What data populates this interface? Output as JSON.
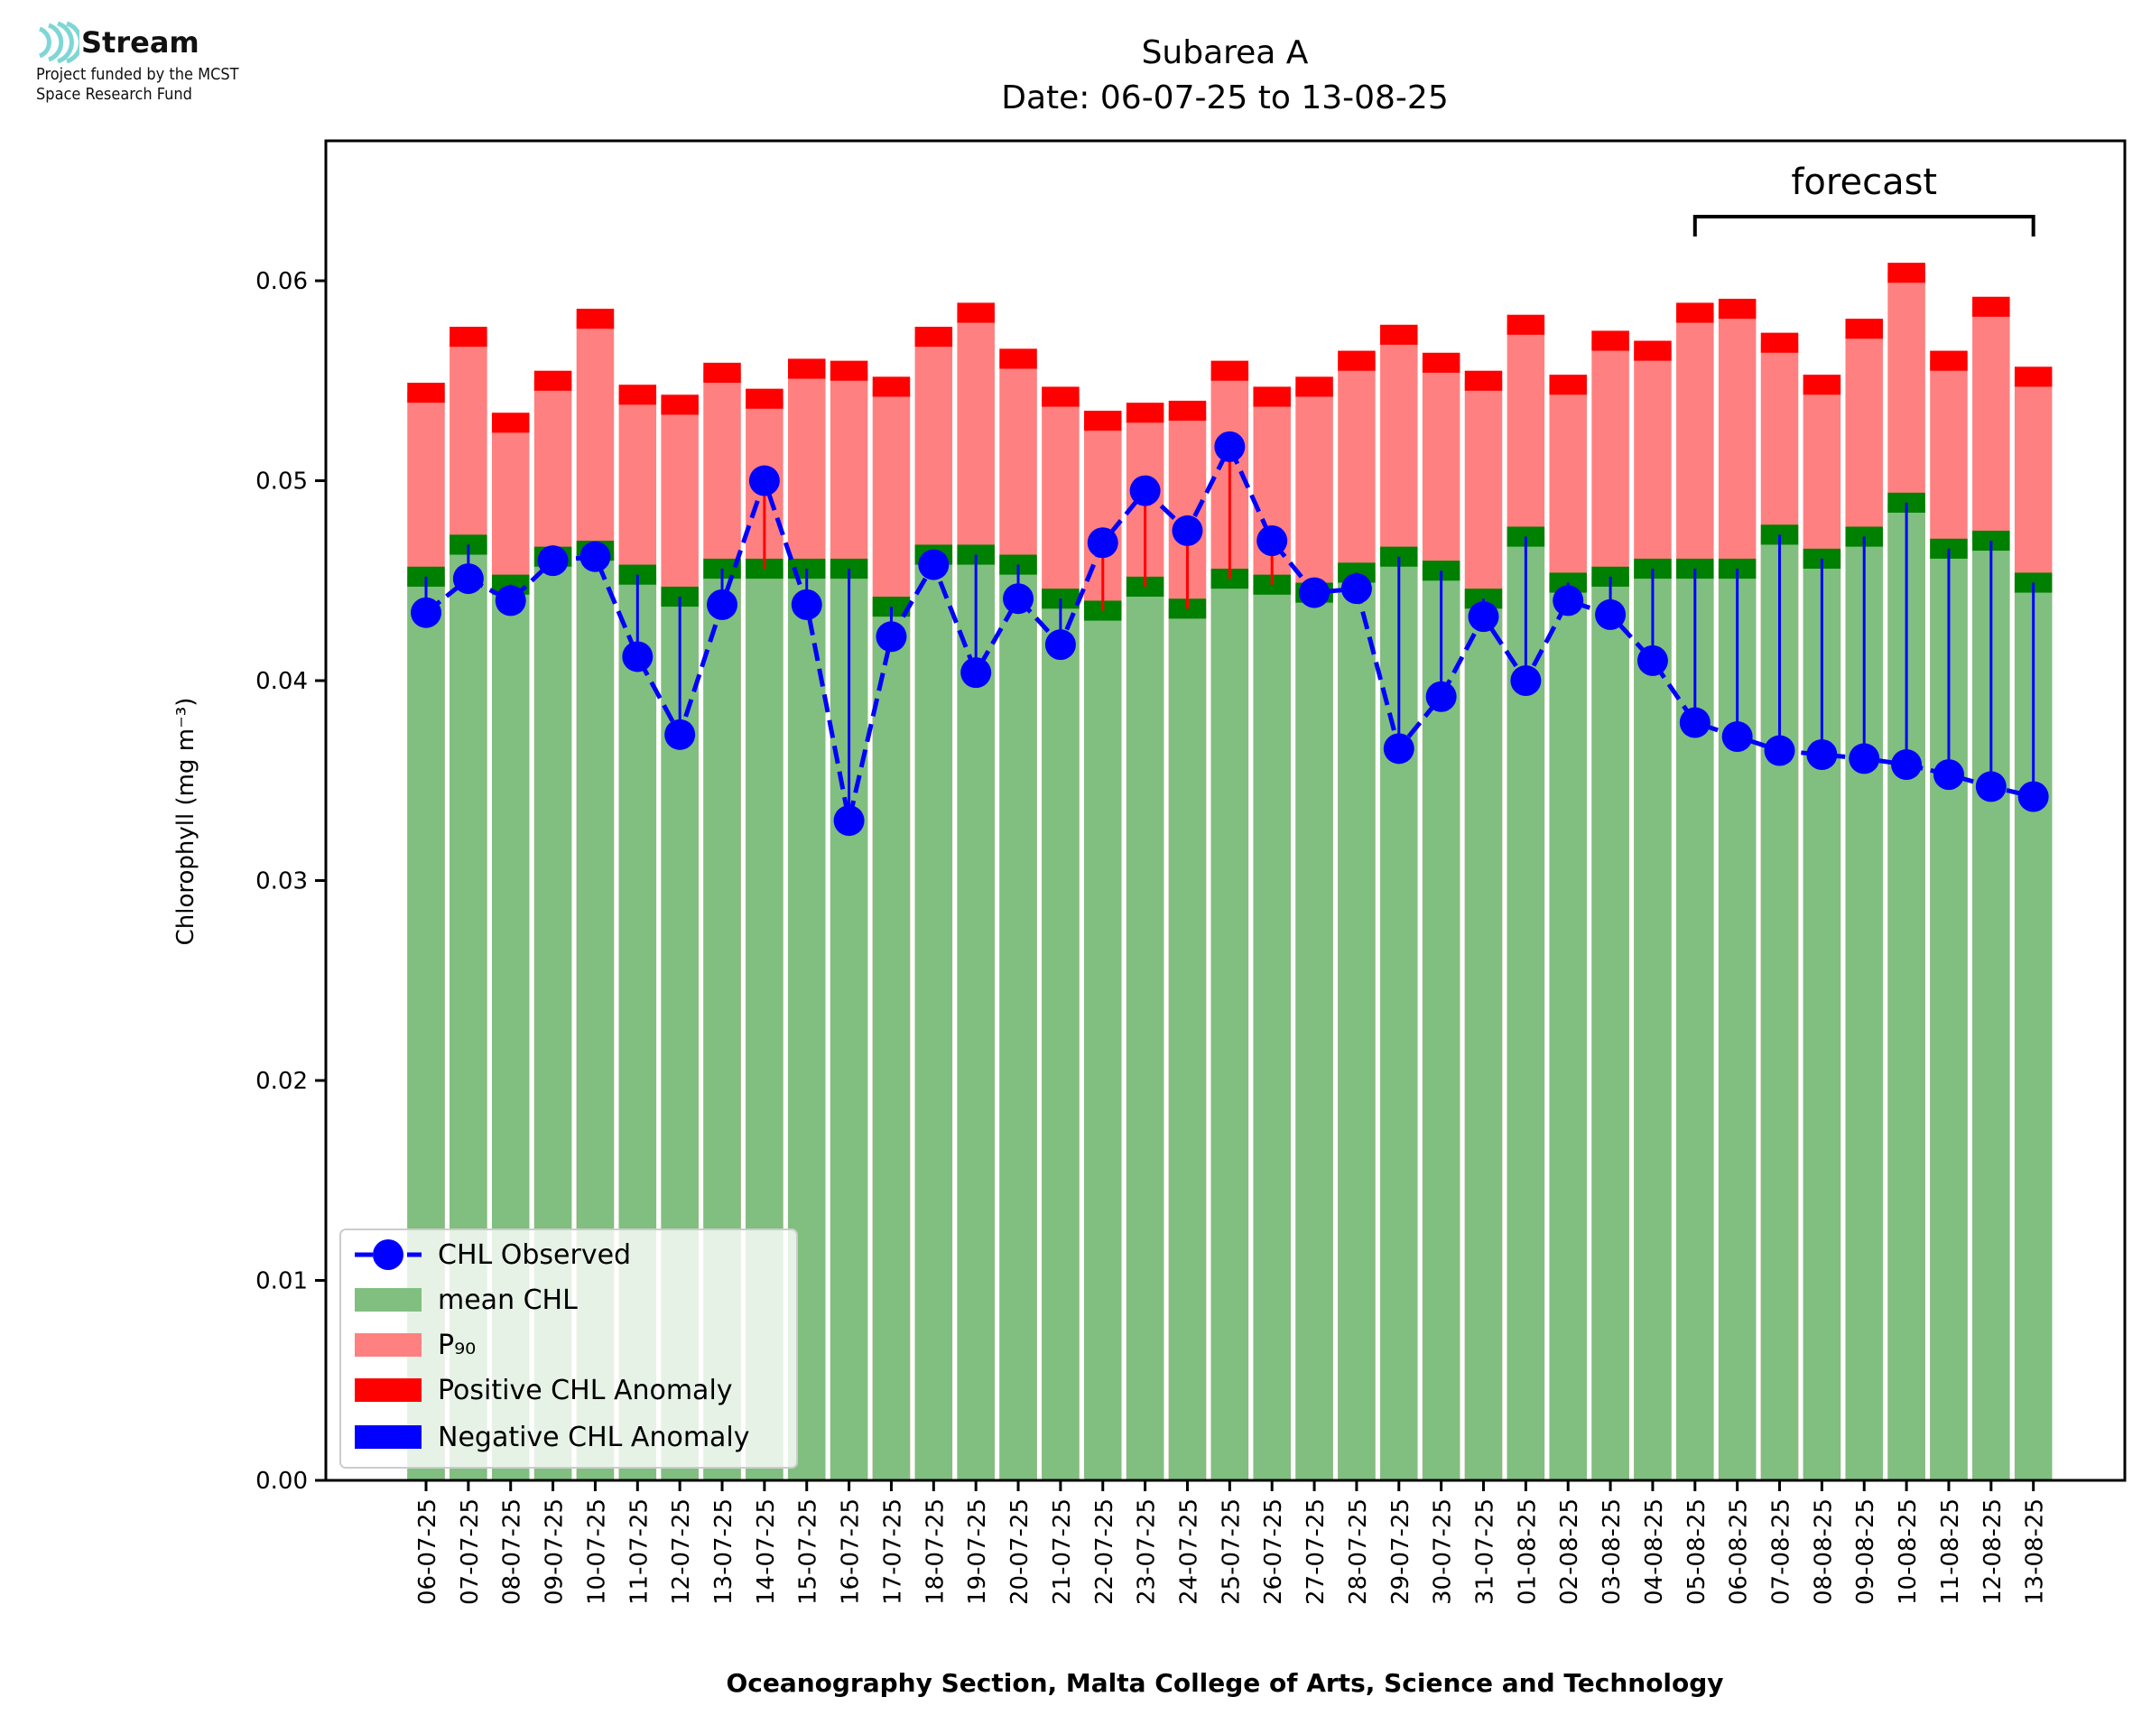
{
  "logo": {
    "name": "Stream",
    "subtitle_line1": "Project funded by the MCST",
    "subtitle_line2": "Space Research Fund"
  },
  "colors": {
    "mean_fill": "#80bf80",
    "mean_band": "#008000",
    "p90_fill": "#ff8080",
    "pos_anomaly": "#ff0000",
    "neg_anomaly": "#0000ff",
    "observed": "#0000ff",
    "logo_accent": "#7fd6d6"
  },
  "chart_data": {
    "type": "bar",
    "title": "Subarea A",
    "subtitle": "Date: 06-07-25 to 13-08-25",
    "xlabel": "Oceanography Section, Malta College of Arts, Science and Technology",
    "ylabel": "Chlorophyll (mg m⁻³)",
    "ylim": [
      0,
      0.067
    ],
    "yticks": [
      "0.00",
      "0.01",
      "0.02",
      "0.03",
      "0.04",
      "0.05",
      "0.06"
    ],
    "grid": false,
    "legend_position": "lower-left",
    "categories": [
      "06-07-25",
      "07-07-25",
      "08-07-25",
      "09-07-25",
      "10-07-25",
      "11-07-25",
      "12-07-25",
      "13-07-25",
      "14-07-25",
      "15-07-25",
      "16-07-25",
      "17-07-25",
      "18-07-25",
      "19-07-25",
      "20-07-25",
      "21-07-25",
      "22-07-25",
      "23-07-25",
      "24-07-25",
      "25-07-25",
      "26-07-25",
      "27-07-25",
      "28-07-25",
      "29-07-25",
      "30-07-25",
      "31-07-25",
      "01-08-25",
      "02-08-25",
      "03-08-25",
      "04-08-25",
      "05-08-25",
      "06-08-25",
      "07-08-25",
      "08-08-25",
      "09-08-25",
      "10-08-25",
      "11-08-25",
      "12-08-25",
      "13-08-25"
    ],
    "series": [
      {
        "name": "CHL Observed",
        "values": [
          0.0434,
          0.0451,
          0.044,
          0.046,
          0.0462,
          0.0412,
          0.0373,
          0.0438,
          0.05,
          0.0438,
          0.033,
          0.0422,
          0.0458,
          0.0404,
          0.0441,
          0.0418,
          0.0469,
          0.0495,
          0.0475,
          0.0517,
          0.047,
          0.0444,
          0.0446,
          0.0366,
          0.0392,
          0.0432,
          0.04,
          0.044,
          0.0433,
          0.041,
          0.0379,
          0.0372,
          0.0365,
          0.0363,
          0.0361,
          0.0358,
          0.0353,
          0.0347,
          0.0342
        ]
      },
      {
        "name": "mean CHL",
        "values": [
          0.0452,
          0.0468,
          0.0448,
          0.0462,
          0.0465,
          0.0453,
          0.0442,
          0.0456,
          0.0456,
          0.0456,
          0.0456,
          0.0437,
          0.0463,
          0.0463,
          0.0458,
          0.0441,
          0.0435,
          0.0447,
          0.0436,
          0.0451,
          0.0448,
          0.0444,
          0.0454,
          0.0462,
          0.0455,
          0.0441,
          0.0472,
          0.0449,
          0.0452,
          0.0456,
          0.0456,
          0.0456,
          0.0473,
          0.0461,
          0.0472,
          0.0489,
          0.0466,
          0.047,
          0.0449
        ]
      },
      {
        "name": "P₉₀",
        "values": [
          0.0544,
          0.0572,
          0.0529,
          0.055,
          0.0581,
          0.0543,
          0.0538,
          0.0554,
          0.0541,
          0.0556,
          0.0555,
          0.0547,
          0.0572,
          0.0584,
          0.0561,
          0.0542,
          0.053,
          0.0534,
          0.0535,
          0.0555,
          0.0542,
          0.0547,
          0.056,
          0.0573,
          0.0559,
          0.055,
          0.0578,
          0.0548,
          0.057,
          0.0565,
          0.0584,
          0.0586,
          0.0569,
          0.0548,
          0.0576,
          0.0604,
          0.056,
          0.0587,
          0.0552
        ]
      }
    ],
    "legend": [
      "CHL Observed",
      "mean CHL",
      "P₉₀",
      "Positive CHL Anomaly",
      "Negative CHL Anomaly"
    ],
    "annotation": {
      "text": "forecast",
      "from": "05-08-25",
      "to": "13-08-25"
    }
  }
}
